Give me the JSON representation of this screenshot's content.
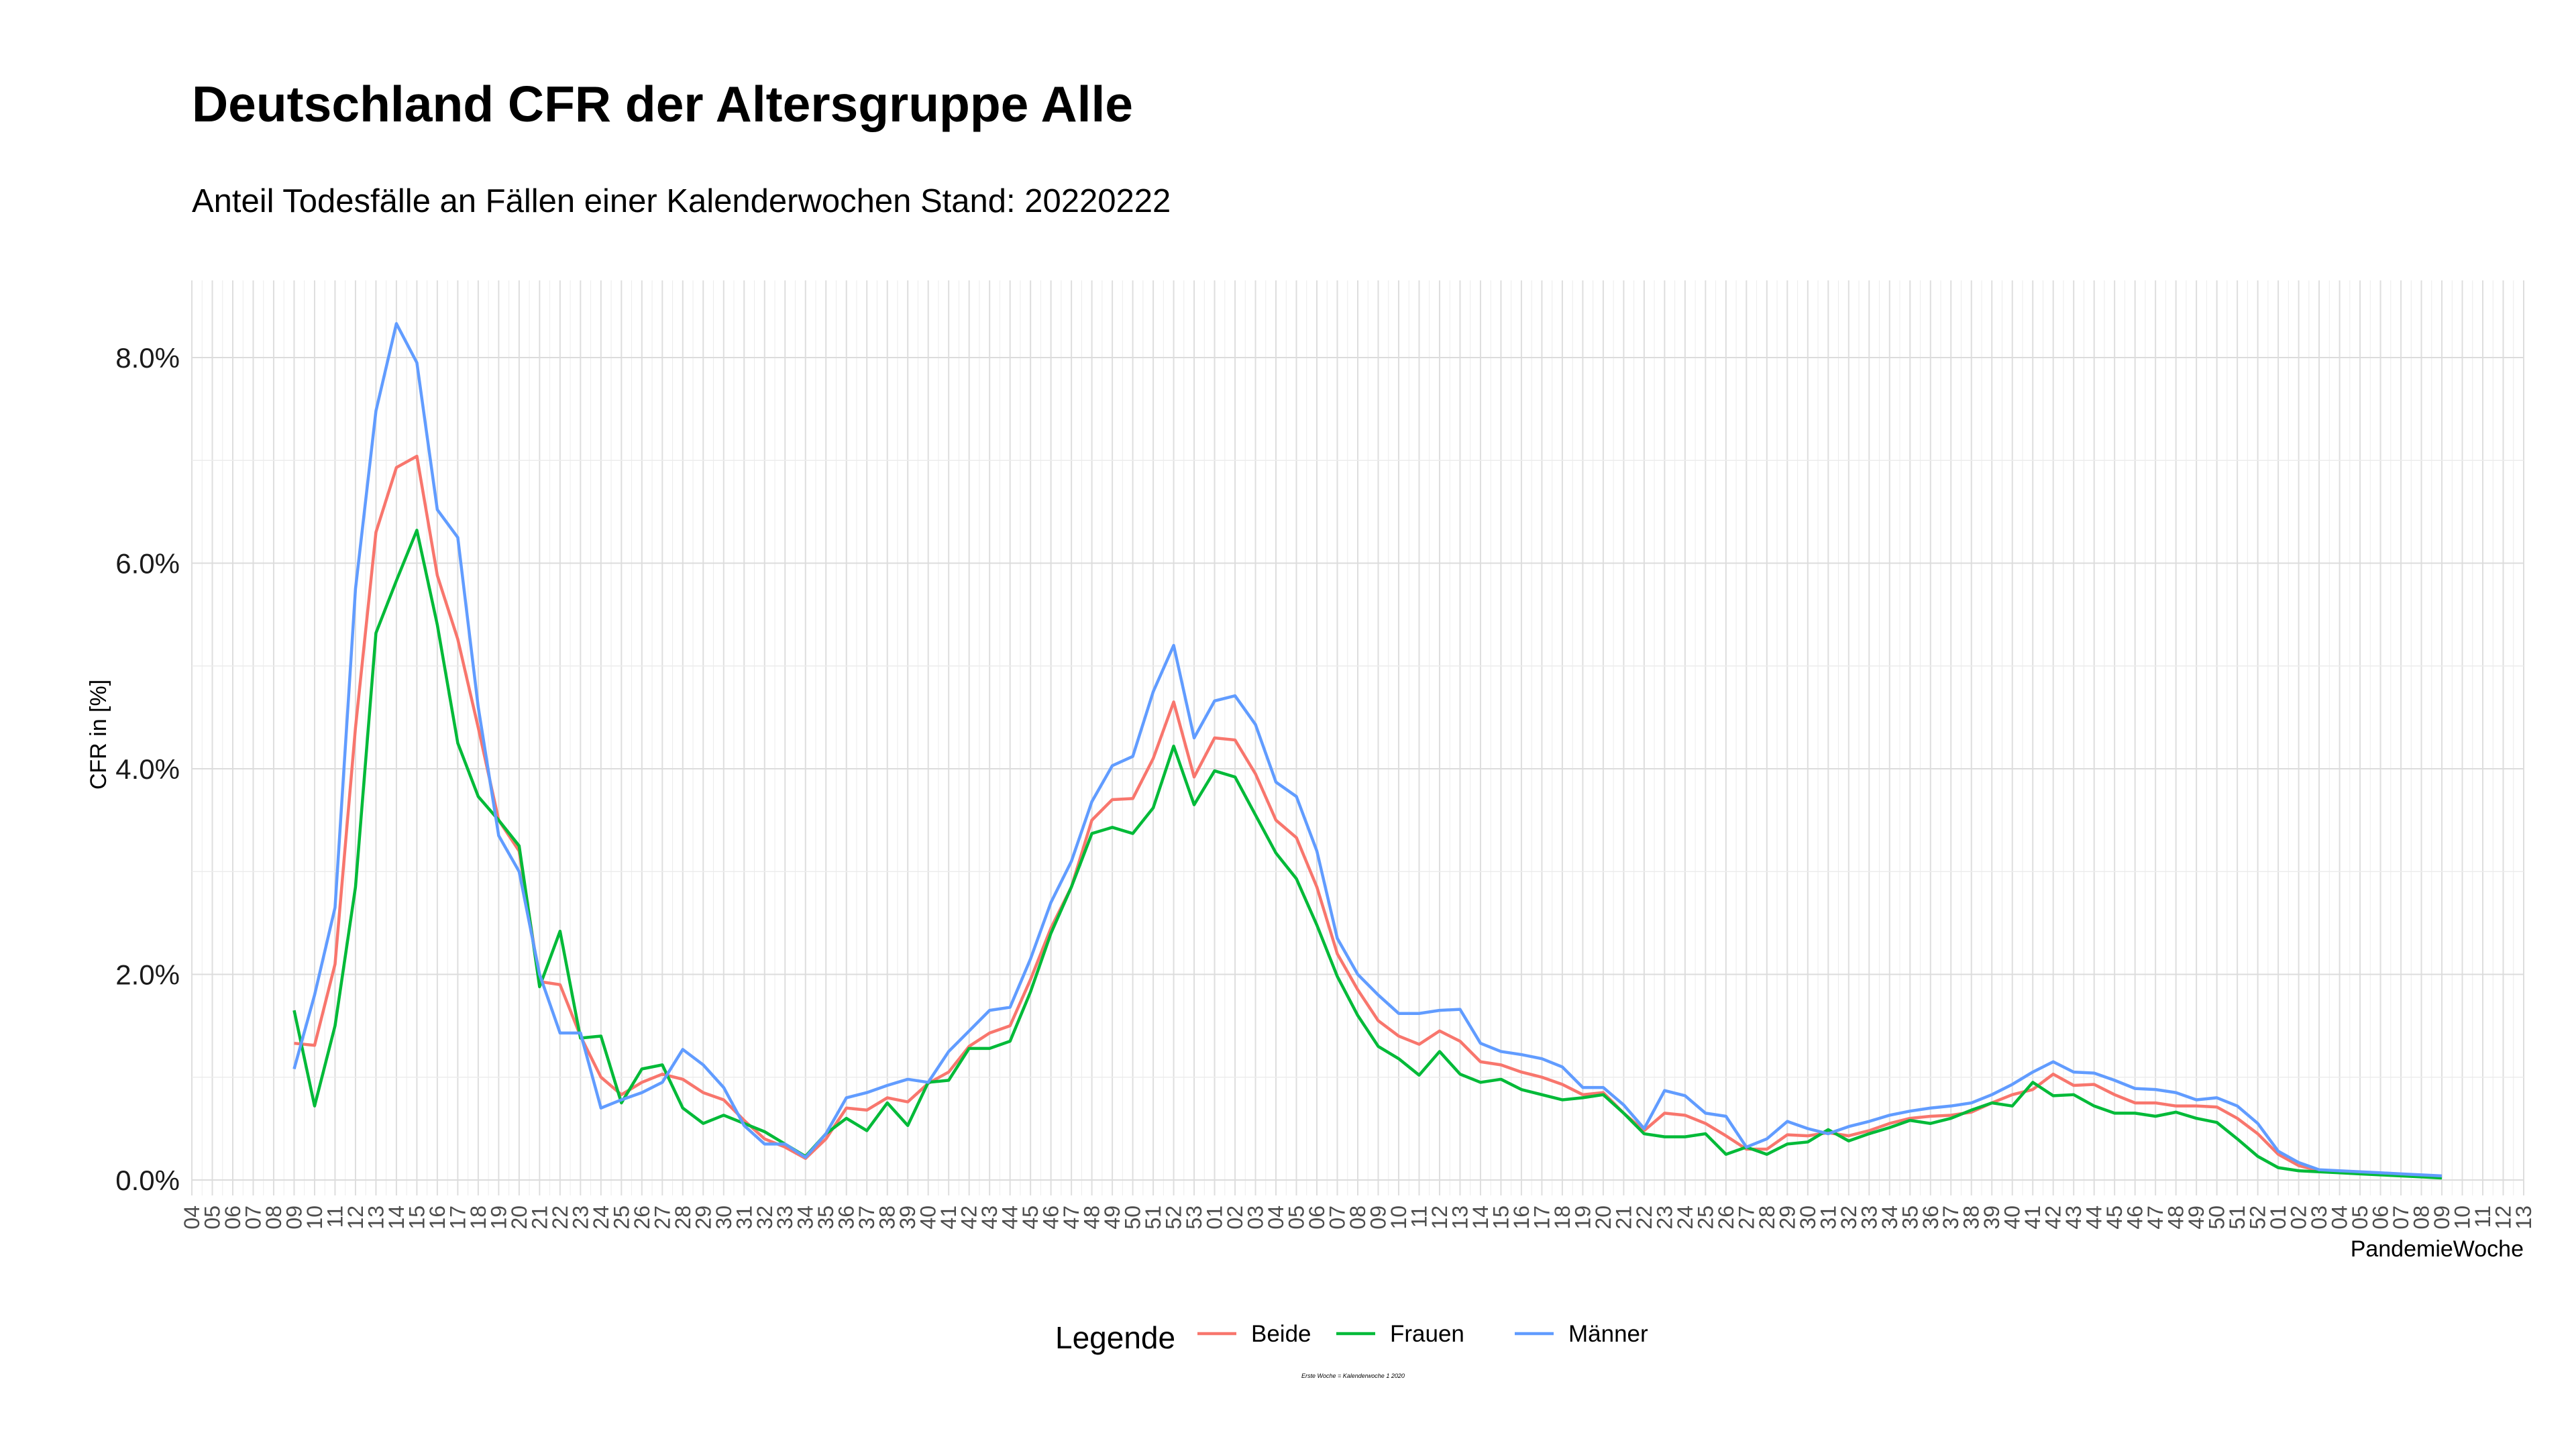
{
  "title": "Deutschland CFR der Altersgruppe Alle",
  "subtitle": "Anteil Todesfälle an Fällen einer Kalenderwochen Stand: 20220222",
  "footnote": "Erste Woche = Kalenderwoche 1 2020",
  "chart_data": {
    "type": "line",
    "title": "Deutschland CFR der Altersgruppe Alle",
    "subtitle": "Anteil Todesfälle an Fällen einer Kalenderwochen Stand: 20220222",
    "xlabel": "PandemieWoche",
    "ylabel": "CFR in [%]",
    "ylim": [
      -0.0015,
      0.0875
    ],
    "y_ticks": [
      0,
      0.02,
      0.04,
      0.06,
      0.08
    ],
    "y_tick_labels": [
      "0.0%",
      "2.0%",
      "4.0%",
      "6.0%",
      "8.0%"
    ],
    "x_tick_labels": [
      "04",
      "05",
      "06",
      "07",
      "08",
      "09",
      "10",
      "11",
      "12",
      "13",
      "14",
      "15",
      "16",
      "17",
      "18",
      "19",
      "20",
      "21",
      "22",
      "23",
      "24",
      "25",
      "26",
      "27",
      "28",
      "29",
      "30",
      "31",
      "32",
      "33",
      "34",
      "35",
      "36",
      "37",
      "38",
      "39",
      "40",
      "41",
      "42",
      "43",
      "44",
      "45",
      "46",
      "47",
      "48",
      "49",
      "50",
      "51",
      "52",
      "53",
      "01",
      "02",
      "03",
      "04",
      "05",
      "06",
      "07",
      "08",
      "09",
      "10",
      "11",
      "12",
      "13",
      "14",
      "15",
      "16",
      "17",
      "18",
      "19",
      "20",
      "21",
      "22",
      "23",
      "24",
      "25",
      "26",
      "27",
      "28",
      "29",
      "30",
      "31",
      "32",
      "33",
      "34",
      "35",
      "36",
      "37",
      "38",
      "39",
      "40",
      "41",
      "42",
      "43",
      "44",
      "45",
      "46",
      "47",
      "48",
      "49",
      "50",
      "51",
      "52",
      "01",
      "02",
      "03",
      "04",
      "05",
      "06",
      "07",
      "08",
      "09",
      "10",
      "11",
      "12",
      "13"
    ],
    "grid": true,
    "legend": {
      "title": "Legende",
      "position": "bottom"
    },
    "series_start_index": 5,
    "series": [
      {
        "name": "Beide",
        "color": "#F8766D",
        "values": [
          0.0133,
          0.0131,
          0.021,
          0.044,
          0.063,
          0.0693,
          0.0704,
          0.0588,
          0.0526,
          0.044,
          0.035,
          0.032,
          0.0193,
          0.019,
          0.014,
          0.01,
          0.0083,
          0.0095,
          0.0103,
          0.0098,
          0.0085,
          0.0078,
          0.0058,
          0.004,
          0.0032,
          0.0021,
          0.004,
          0.007,
          0.0068,
          0.008,
          0.0076,
          0.0094,
          0.0105,
          0.013,
          0.0143,
          0.015,
          0.0195,
          0.0245,
          0.0285,
          0.035,
          0.037,
          0.0371,
          0.041,
          0.0465,
          0.0392,
          0.043,
          0.0428,
          0.0395,
          0.035,
          0.0333,
          0.0285,
          0.022,
          0.0185,
          0.0155,
          0.014,
          0.0132,
          0.0145,
          0.0135,
          0.0115,
          0.0112,
          0.0105,
          0.01,
          0.0093,
          0.0083,
          0.0085,
          0.0065,
          0.0048,
          0.0065,
          0.0063,
          0.0055,
          0.0043,
          0.003,
          0.003,
          0.0044,
          0.0043,
          0.0046,
          0.0043,
          0.0048,
          0.0055,
          0.006,
          0.0062,
          0.0063,
          0.0066,
          0.0075,
          0.0083,
          0.0088,
          0.0103,
          0.0092,
          0.0093,
          0.0083,
          0.0075,
          0.0075,
          0.0072,
          0.0072,
          0.0071,
          0.006,
          0.0045,
          0.0025,
          0.0014,
          0.0009,
          0.0008,
          0.0007,
          0.0006,
          0.0005,
          0.0004,
          0.0003
        ]
      },
      {
        "name": "Frauen",
        "color": "#00BA38",
        "values": [
          0.0165,
          0.0072,
          0.015,
          0.0285,
          0.0532,
          0.0583,
          0.0632,
          0.054,
          0.0425,
          0.0373,
          0.035,
          0.0325,
          0.0188,
          0.0242,
          0.0138,
          0.014,
          0.0075,
          0.0108,
          0.0112,
          0.007,
          0.0055,
          0.0063,
          0.0055,
          0.0047,
          0.0035,
          0.0023,
          0.0045,
          0.006,
          0.0048,
          0.0075,
          0.0053,
          0.0095,
          0.0097,
          0.0128,
          0.0128,
          0.0135,
          0.0183,
          0.024,
          0.0285,
          0.0337,
          0.0343,
          0.0337,
          0.0362,
          0.0422,
          0.0365,
          0.0398,
          0.0392,
          0.0355,
          0.0318,
          0.0293,
          0.0248,
          0.0198,
          0.016,
          0.013,
          0.0118,
          0.0102,
          0.0125,
          0.0103,
          0.0095,
          0.0098,
          0.0088,
          0.0083,
          0.0078,
          0.008,
          0.0083,
          0.0065,
          0.0045,
          0.0042,
          0.0042,
          0.0045,
          0.0025,
          0.0032,
          0.0025,
          0.0035,
          0.0037,
          0.0049,
          0.0038,
          0.0045,
          0.0051,
          0.0058,
          0.0055,
          0.006,
          0.0068,
          0.0075,
          0.0072,
          0.0095,
          0.0082,
          0.0083,
          0.0072,
          0.0065,
          0.0065,
          0.0062,
          0.0066,
          0.006,
          0.0056,
          0.004,
          0.0023,
          0.0012,
          0.0009,
          0.0008,
          0.0007,
          0.0006,
          0.0005,
          0.0004,
          0.0003,
          0.0002
        ]
      },
      {
        "name": "Männer",
        "color": "#619CFF",
        "values": [
          0.0108,
          0.018,
          0.0265,
          0.0575,
          0.0748,
          0.0833,
          0.0795,
          0.0652,
          0.0625,
          0.046,
          0.0335,
          0.03,
          0.02,
          0.0143,
          0.0143,
          0.007,
          0.0078,
          0.0085,
          0.0095,
          0.0127,
          0.0112,
          0.009,
          0.0053,
          0.0035,
          0.0035,
          0.0022,
          0.0045,
          0.008,
          0.0085,
          0.0092,
          0.0098,
          0.0095,
          0.0125,
          0.0145,
          0.0165,
          0.0168,
          0.0215,
          0.027,
          0.031,
          0.0368,
          0.0403,
          0.0412,
          0.0475,
          0.052,
          0.043,
          0.0466,
          0.0471,
          0.0443,
          0.0387,
          0.0373,
          0.032,
          0.0235,
          0.02,
          0.018,
          0.0162,
          0.0162,
          0.0165,
          0.0166,
          0.0133,
          0.0125,
          0.0122,
          0.0118,
          0.011,
          0.009,
          0.009,
          0.0073,
          0.005,
          0.0087,
          0.0082,
          0.0065,
          0.0062,
          0.0032,
          0.004,
          0.0057,
          0.005,
          0.0045,
          0.0052,
          0.0057,
          0.0063,
          0.0067,
          0.007,
          0.0072,
          0.0075,
          0.0083,
          0.0093,
          0.0105,
          0.0115,
          0.0105,
          0.0104,
          0.0097,
          0.0089,
          0.0088,
          0.0085,
          0.0078,
          0.008,
          0.0072,
          0.0055,
          0.0028,
          0.0017,
          0.001,
          0.0009,
          0.0008,
          0.0007,
          0.0006,
          0.0005,
          0.0004
        ]
      }
    ]
  }
}
